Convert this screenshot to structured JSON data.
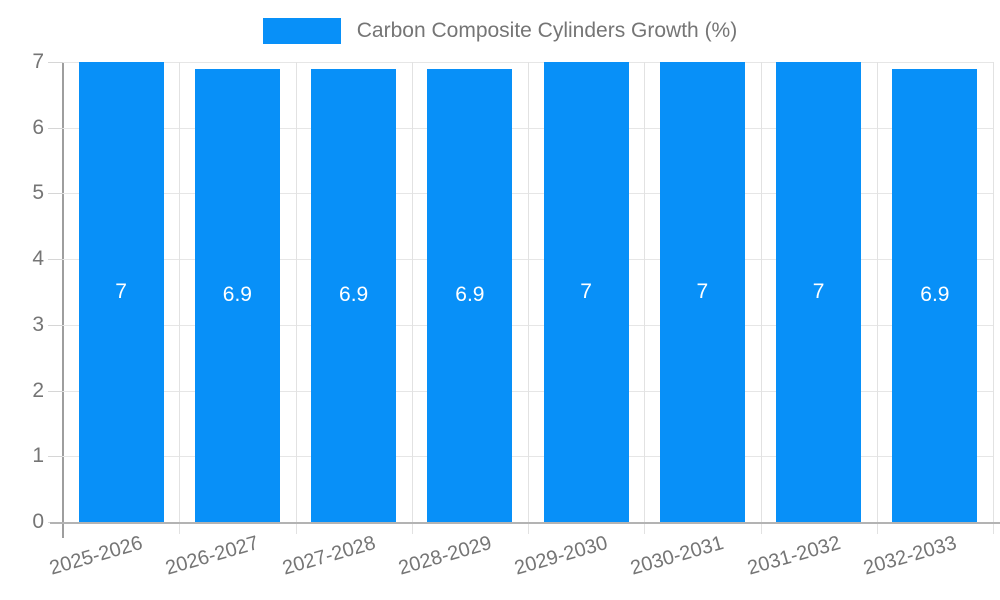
{
  "chart_data": {
    "type": "bar",
    "title": "Carbon Composite Cylinders Growth (%)",
    "categories": [
      "2025-2026",
      "2026-2027",
      "2027-2028",
      "2028-2029",
      "2029-2030",
      "2030-2031",
      "2031-2032",
      "2032-2033"
    ],
    "values": [
      7,
      6.9,
      6.9,
      6.9,
      7,
      7,
      7,
      6.9
    ],
    "bar_labels": [
      "7",
      "6.9",
      "6.9",
      "6.9",
      "7",
      "7",
      "7",
      "6.9"
    ],
    "xlabel": "",
    "ylabel": "",
    "ylim": [
      0,
      7
    ],
    "yticks": [
      0,
      1,
      2,
      3,
      4,
      5,
      6,
      7
    ],
    "grid": true,
    "legend_position": "top-center",
    "x_label_rotation_deg": -16,
    "colors": {
      "bar": "#0890f8",
      "bar_label_text": "#ffffff",
      "axis_text": "#757575",
      "gridline": "#e6e6e6",
      "axis_line": "#9e9e9e",
      "baseline": "#b3b3b3"
    }
  }
}
